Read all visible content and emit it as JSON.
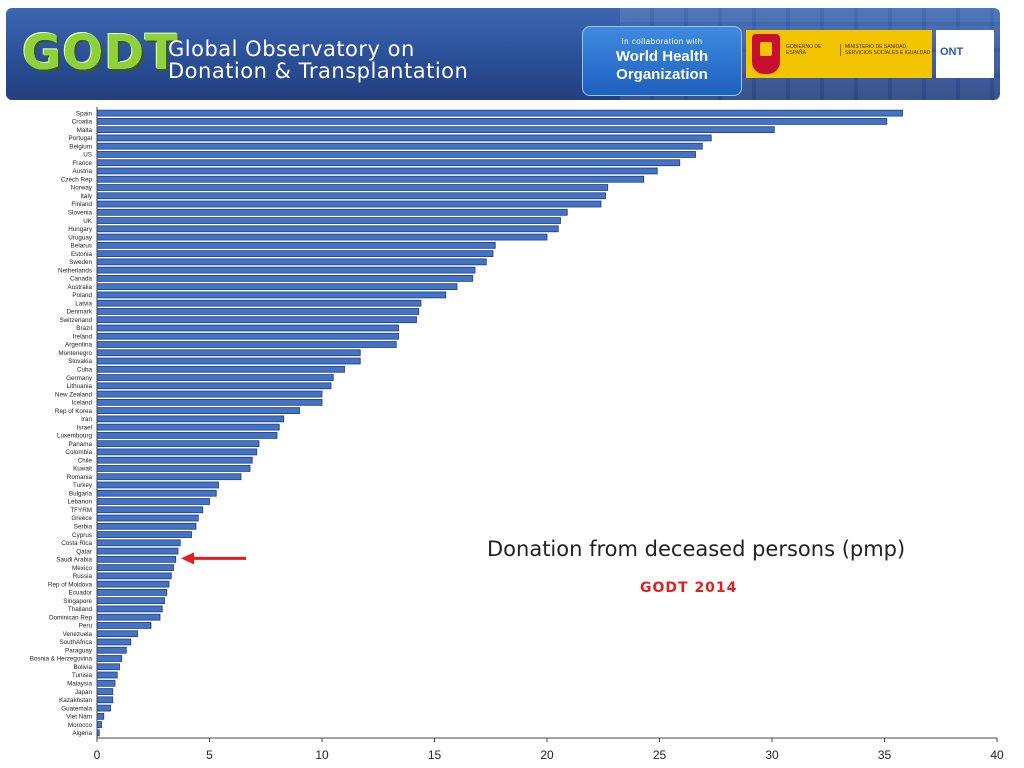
{
  "header": {
    "logo_text": "GODT",
    "observatory_line1": "Global Observatory on",
    "observatory_line2": "Donation & Transplantation",
    "who_small": "In collaboration with",
    "who_line1": "World Health",
    "who_line2": "Organization",
    "gov_text1": "GOBIERNO DE ESPAÑA",
    "gov_text2": "MINISTERIO DE SANIDAD, SERVICIOS SOCIALES E IGUALDAD",
    "ont_label": "ONT"
  },
  "colors": {
    "bar": "#4472c4",
    "bar_edge": "#1f3f7a",
    "arrow": "#e02020",
    "header_bg": "#2a4f97",
    "logo_green": "#8fd13a"
  },
  "chart_data": {
    "type": "bar",
    "orientation": "horizontal",
    "title": "",
    "xlabel": "",
    "ylabel": "",
    "xlim": [
      0,
      40
    ],
    "xticks": [
      0,
      5,
      10,
      15,
      20,
      25,
      30,
      35,
      40
    ],
    "grid": false,
    "annotation": "Donation from deceased persons (pmp)",
    "source": "GODT 2014",
    "highlight_arrow_at": "Saudi Arabia",
    "categories": [
      "Spain",
      "Croatia",
      "Malta",
      "Portugal",
      "Belgium",
      "US",
      "France",
      "Austria",
      "Czech Rep",
      "Norway",
      "Italy",
      "Finland",
      "Slovenia",
      "UK",
      "Hungary",
      "Uruguay",
      "Belarus",
      "Estonia",
      "Sweden",
      "Netherlands",
      "Canada",
      "Australia",
      "Poland",
      "Latvia",
      "Denmark",
      "Switzerland",
      "Brazil",
      "Ireland",
      "Argentina",
      "Montenegro",
      "Slovakia",
      "Cuba",
      "Germany",
      "Lithuania",
      "New Zealand",
      "Iceland",
      "Rep of Korea",
      "Iran",
      "Israel",
      "Luxembourg",
      "Panama",
      "Colombia",
      "Chile",
      "Kuwait",
      "Romania",
      "Turkey",
      "Bulgaria",
      "Lebanon",
      "TFYRM",
      "Greece",
      "Serbia",
      "Cyprus",
      "Costa Rica",
      "Qatar",
      "Saudi Arabia",
      "Mexico",
      "Russia",
      "Rep of Moldova",
      "Ecuador",
      "Singapore",
      "Thailand",
      "Dominican Rep",
      "Peru",
      "Venezuela",
      "SouthAfrica",
      "Paraguay",
      "Bosnia & Herzegovina",
      "Bolivia",
      "Tunisia",
      "Malaysia",
      "Japan",
      "Kazakhstan",
      "Guatemala",
      "Viet Nam",
      "Morocco",
      "Algeria"
    ],
    "values": [
      35.8,
      35.1,
      30.1,
      27.3,
      26.9,
      26.6,
      25.9,
      24.9,
      24.3,
      22.7,
      22.6,
      22.4,
      20.9,
      20.6,
      20.5,
      20.0,
      17.7,
      17.6,
      17.3,
      16.8,
      16.7,
      16.0,
      15.5,
      14.4,
      14.3,
      14.2,
      13.4,
      13.4,
      13.3,
      11.7,
      11.7,
      11.0,
      10.5,
      10.4,
      10.0,
      10.0,
      9.0,
      8.3,
      8.1,
      8.0,
      7.2,
      7.1,
      6.9,
      6.8,
      6.4,
      5.4,
      5.3,
      5.0,
      4.7,
      4.5,
      4.4,
      4.2,
      3.7,
      3.6,
      3.5,
      3.4,
      3.3,
      3.2,
      3.1,
      3.0,
      2.9,
      2.8,
      2.4,
      1.8,
      1.5,
      1.3,
      1.1,
      1.0,
      0.9,
      0.8,
      0.7,
      0.7,
      0.6,
      0.3,
      0.2,
      0.1
    ]
  }
}
